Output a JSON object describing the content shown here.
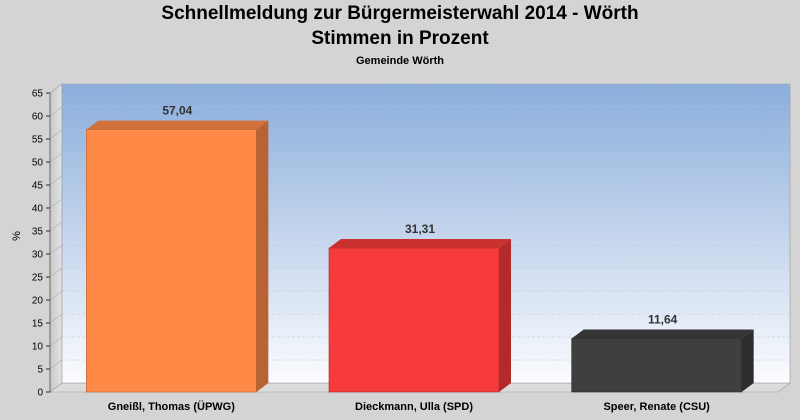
{
  "chart_data": {
    "type": "bar",
    "title": "Schnellmeldung zur Bürgermeisterwahl 2014 - Wörth",
    "subtitle": "Stimmen in Prozent",
    "caption": "Gemeinde Wörth",
    "ylabel": "%",
    "xlabel": "",
    "ylim": [
      0,
      65
    ],
    "ytick_step": 5,
    "grid": true,
    "categories": [
      "Gneißl, Thomas (ÜPWG)",
      "Dieckmann, Ulla (SPD)",
      "Speer, Renate (CSU)"
    ],
    "values": [
      57.04,
      31.31,
      11.64
    ],
    "value_labels": [
      "57,04",
      "31,31",
      "11,64"
    ],
    "colors": [
      "#ff8a48",
      "#f73a3c",
      "#3f3f3f"
    ]
  }
}
